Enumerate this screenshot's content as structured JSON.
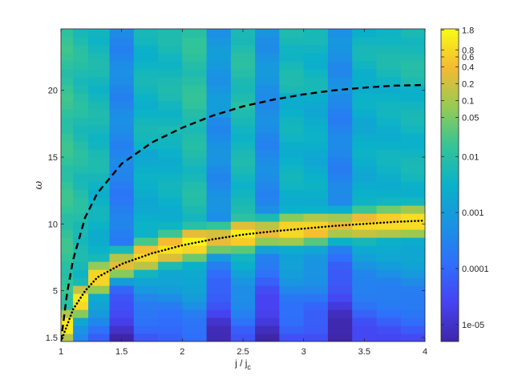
{
  "chart_data": {
    "type": "heatmap",
    "title": "",
    "xlabel": "j / j",
    "xlabel_subscript": "c",
    "ylabel": "ω",
    "xlim": [
      1,
      4
    ],
    "ylim": [
      1.2,
      24.6
    ],
    "x_ticks": [
      1,
      1.5,
      2,
      2.5,
      3,
      3.5,
      4
    ],
    "x_tick_labels": [
      "1",
      "1.5",
      "2",
      "2.5",
      "3",
      "3.5",
      "4"
    ],
    "y_ticks": [
      1.5,
      5,
      10,
      15,
      20
    ],
    "y_tick_labels": [
      "1.5",
      "5",
      "10",
      "15",
      "20"
    ],
    "colormap": "parula",
    "colorbar": {
      "scale": "log",
      "range": [
        5e-06,
        1.9
      ],
      "ticks": [
        1.8,
        0.8,
        0.6,
        0.4,
        0.2,
        0.1,
        0.05,
        0.01,
        0.001,
        0.0001,
        1e-05
      ],
      "tick_labels": [
        "1.8",
        "0.8",
        "0.6",
        "0.4",
        "0.2",
        "0.1",
        "0.05",
        "0.01",
        "0.001",
        "0.0001",
        "1e-05"
      ]
    },
    "grid": false,
    "columns_x": [
      1.05,
      1.15,
      1.3,
      1.5,
      1.7,
      1.9,
      2.1,
      2.3,
      2.5,
      2.7,
      2.9,
      3.1,
      3.3,
      3.5,
      3.7,
      3.9
    ],
    "column_base_levels": [
      0.01,
      0.006,
      0.004,
      0.0003,
      0.003,
      0.004,
      0.008,
      0.0006,
      0.006,
      0.0005,
      0.004,
      0.003,
      0.0004,
      0.003,
      0.004,
      0.005
    ],
    "series": [
      {
        "style": "dashed",
        "x": [
          1,
          1.05,
          1.1,
          1.2,
          1.3,
          1.5,
          1.75,
          2,
          2.25,
          2.5,
          2.75,
          3,
          3.25,
          3.5,
          3.75,
          4
        ],
        "y": [
          1.2,
          4.8,
          7.3,
          10.5,
          12.3,
          14.5,
          16.1,
          17.2,
          18.1,
          18.8,
          19.3,
          19.7,
          20.0,
          20.2,
          20.35,
          20.4
        ]
      },
      {
        "style": "dotted",
        "x": [
          1,
          1.05,
          1.1,
          1.2,
          1.3,
          1.5,
          1.75,
          2,
          2.25,
          2.5,
          2.75,
          3,
          3.25,
          3.5,
          3.75,
          4
        ],
        "y": [
          1.2,
          2.4,
          3.6,
          5.0,
          6.0,
          7.0,
          7.8,
          8.4,
          8.85,
          9.2,
          9.45,
          9.65,
          9.85,
          10.0,
          10.15,
          10.25
        ]
      }
    ]
  }
}
